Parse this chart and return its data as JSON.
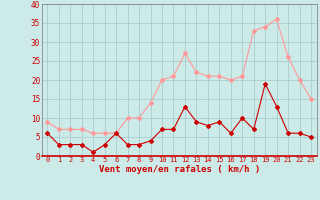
{
  "hours": [
    0,
    1,
    2,
    3,
    4,
    5,
    6,
    7,
    8,
    9,
    10,
    11,
    12,
    13,
    14,
    15,
    16,
    17,
    18,
    19,
    20,
    21,
    22,
    23
  ],
  "wind_avg": [
    6,
    3,
    3,
    3,
    1,
    3,
    6,
    3,
    3,
    4,
    7,
    7,
    13,
    9,
    8,
    9,
    6,
    10,
    7,
    19,
    13,
    6,
    6,
    5
  ],
  "wind_gust": [
    9,
    7,
    7,
    7,
    6,
    6,
    6,
    10,
    10,
    14,
    20,
    21,
    27,
    22,
    21,
    21,
    20,
    21,
    33,
    34,
    36,
    26,
    20,
    15
  ],
  "bg_color": "#cceae8",
  "grid_color": "#aacccc",
  "avg_color": "#cc0000",
  "gust_color": "#ff9999",
  "xlabel": "Vent moyen/en rafales ( km/h )",
  "xlabel_color": "#cc0000",
  "tick_color": "#cc0000",
  "ylim": [
    0,
    40
  ],
  "yticks": [
    0,
    5,
    10,
    15,
    20,
    25,
    30,
    35,
    40
  ],
  "xticks": [
    0,
    1,
    2,
    3,
    4,
    5,
    6,
    7,
    8,
    9,
    10,
    11,
    12,
    13,
    14,
    15,
    16,
    17,
    18,
    19,
    20,
    21,
    22,
    23
  ],
  "marker": "D",
  "markersize": 2.0,
  "linewidth": 0.8
}
